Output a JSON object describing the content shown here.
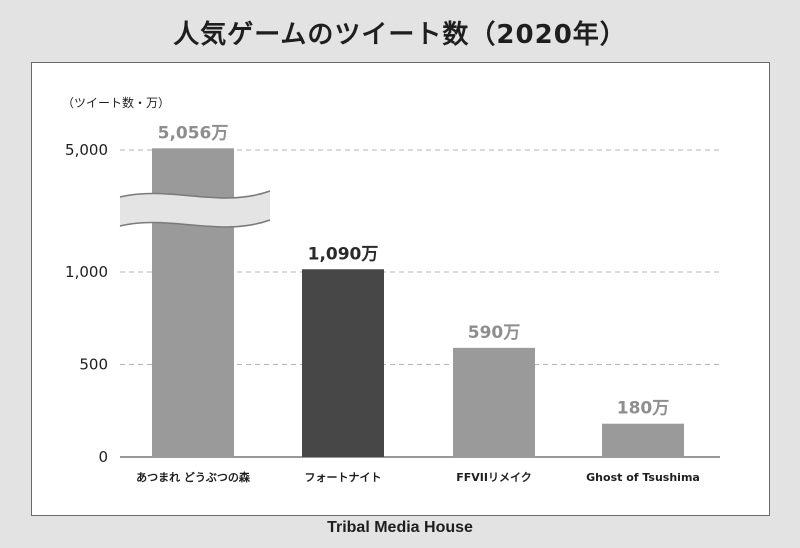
{
  "title": "人気ゲームのツイート数（2020年）",
  "footer": "Tribal Media House",
  "chart_data": {
    "type": "bar",
    "title": "人気ゲームのツイート数（2020年）",
    "ylabel": "（ツイート数・万）",
    "xlabel": "",
    "scale": "broken (axis break between 1,000 and 5,000)",
    "yticks": [
      "0",
      "500",
      "1,000",
      "5,000"
    ],
    "ytick_values": [
      0,
      500,
      1000,
      5000
    ],
    "categories": [
      "あつまれ どうぶつの森",
      "フォートナイト",
      "FFVIIリメイク",
      "Ghost of Tsushima"
    ],
    "values": [
      5056,
      1090,
      590,
      180
    ],
    "value_labels": [
      "5,056万",
      "1,090万",
      "590万",
      "180万"
    ],
    "colors": [
      "#9a9a9a",
      "#474747",
      "#9a9a9a",
      "#9a9a9a"
    ],
    "label_colors": [
      "#8e8e8e",
      "#2a2a2a",
      "#8e8e8e",
      "#8e8e8e"
    ],
    "grid": true
  }
}
